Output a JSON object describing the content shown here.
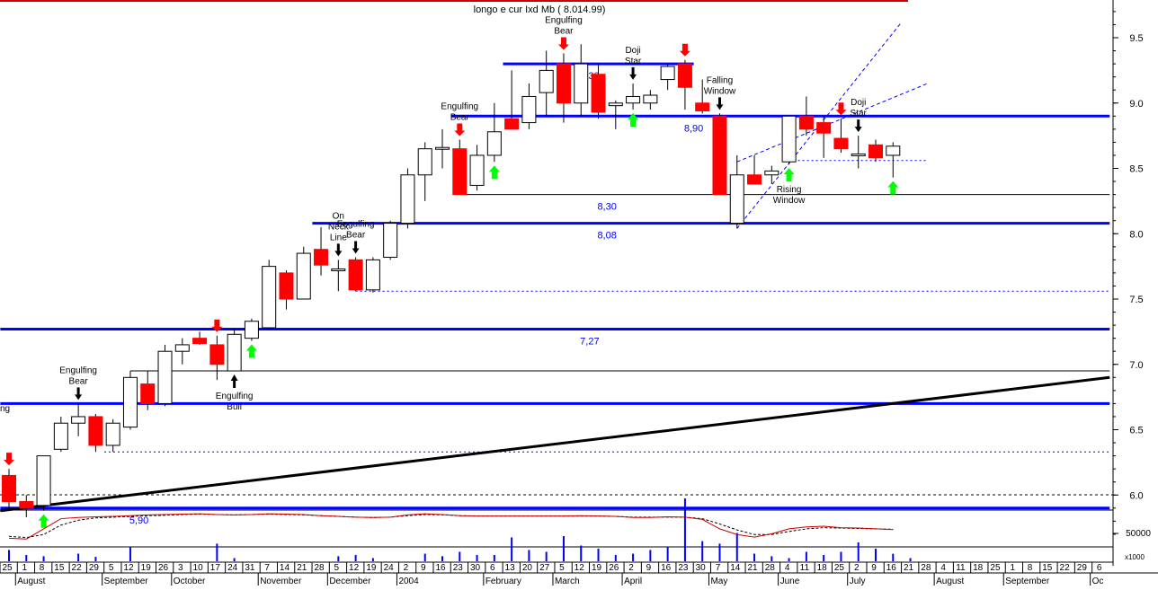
{
  "title": "longo e cur Ixd Mb ( 8.014.99)",
  "colors": {
    "bear": "#ff0000",
    "bull": "#ffffff",
    "outline": "#000000",
    "level": "#0000ff",
    "trend": "#000000",
    "stoch_k": "#cc0000",
    "stoch_d": "#000000",
    "volume": "#0000ff",
    "up_arrow": "#00ff00",
    "down_arrow_red": "#ff0000",
    "down_arrow_black": "#000000"
  },
  "chart_data": {
    "type": "candlestick",
    "y_axis": {
      "ticks": [
        9.5,
        9.0,
        8.5,
        8.0,
        7.5,
        7.0,
        6.5,
        6.0
      ],
      "range": [
        5.66,
        9.84
      ]
    },
    "volume_axis": {
      "tick_label": "50000",
      "unit_label": "x1000"
    },
    "x_axis": {
      "day_labels": [
        "25",
        "1",
        "8",
        "15",
        "22",
        "29",
        "5",
        "12",
        "19",
        "26",
        "3",
        "10",
        "17",
        "24",
        "31",
        "7",
        "14",
        "21",
        "28",
        "5",
        "12",
        "19",
        "24",
        "2",
        "9",
        "16",
        "23",
        "30",
        "6",
        "13",
        "20",
        "27",
        "5",
        "12",
        "19",
        "26",
        "2",
        "9",
        "16",
        "23",
        "30",
        "7",
        "14",
        "21",
        "28",
        "4",
        "11",
        "18",
        "25",
        "2",
        "9",
        "16",
        "21",
        "28",
        "4",
        "11",
        "18",
        "25",
        "1",
        "8",
        "15",
        "22",
        "29",
        "6"
      ],
      "months": [
        {
          "label": "August",
          "pos": 1
        },
        {
          "label": "September",
          "pos": 6
        },
        {
          "label": "October",
          "pos": 10
        },
        {
          "label": "November",
          "pos": 15
        },
        {
          "label": "December",
          "pos": 19
        },
        {
          "label": "2004",
          "pos": 23
        },
        {
          "label": "February",
          "pos": 28
        },
        {
          "label": "March",
          "pos": 32
        },
        {
          "label": "April",
          "pos": 36
        },
        {
          "label": "May",
          "pos": 41
        },
        {
          "label": "June",
          "pos": 45
        },
        {
          "label": "July",
          "pos": 49
        },
        {
          "label": "August",
          "pos": 54
        },
        {
          "label": "September",
          "pos": 58
        },
        {
          "label": "Oc",
          "pos": 63
        }
      ]
    },
    "candles": [
      {
        "s": 0,
        "o": 6.15,
        "h": 6.2,
        "l": 5.9,
        "c": 5.95
      },
      {
        "s": 1,
        "o": 5.95,
        "h": 6.0,
        "l": 5.83,
        "c": 5.9
      },
      {
        "s": 2,
        "o": 5.92,
        "h": 6.3,
        "l": 5.88,
        "c": 6.3
      },
      {
        "s": 3,
        "o": 6.35,
        "h": 6.6,
        "l": 6.33,
        "c": 6.55
      },
      {
        "s": 4,
        "o": 6.55,
        "h": 6.7,
        "l": 6.45,
        "c": 6.6
      },
      {
        "s": 5,
        "o": 6.6,
        "h": 6.62,
        "l": 6.33,
        "c": 6.38
      },
      {
        "s": 6,
        "o": 6.38,
        "h": 6.58,
        "l": 6.33,
        "c": 6.55
      },
      {
        "s": 7,
        "o": 6.52,
        "h": 6.95,
        "l": 6.5,
        "c": 6.9
      },
      {
        "s": 8,
        "o": 6.85,
        "h": 6.95,
        "l": 6.65,
        "c": 6.7
      },
      {
        "s": 9,
        "o": 6.7,
        "h": 7.15,
        "l": 6.68,
        "c": 7.1
      },
      {
        "s": 10,
        "o": 7.1,
        "h": 7.2,
        "l": 7.0,
        "c": 7.15
      },
      {
        "s": 11,
        "o": 7.2,
        "h": 7.25,
        "l": 7.15,
        "c": 7.16
      },
      {
        "s": 12,
        "o": 7.15,
        "h": 7.22,
        "l": 6.88,
        "c": 7.0
      },
      {
        "s": 13,
        "o": 6.95,
        "h": 7.27,
        "l": 6.95,
        "c": 7.23
      },
      {
        "s": 14,
        "o": 7.2,
        "h": 7.35,
        "l": 7.18,
        "c": 7.33
      },
      {
        "s": 15,
        "o": 7.28,
        "h": 7.8,
        "l": 7.27,
        "c": 7.75
      },
      {
        "s": 16,
        "o": 7.7,
        "h": 7.72,
        "l": 7.42,
        "c": 7.5
      },
      {
        "s": 17,
        "o": 7.5,
        "h": 7.9,
        "l": 7.5,
        "c": 7.85
      },
      {
        "s": 18,
        "o": 7.88,
        "h": 8.05,
        "l": 7.68,
        "c": 7.76
      },
      {
        "s": 19,
        "o": 7.72,
        "h": 7.8,
        "l": 7.56,
        "c": 7.73
      },
      {
        "s": 20,
        "o": 7.8,
        "h": 7.82,
        "l": 7.56,
        "c": 7.57
      },
      {
        "s": 21,
        "o": 7.57,
        "h": 7.82,
        "l": 7.55,
        "c": 7.8
      },
      {
        "s": 22,
        "o": 7.82,
        "h": 8.1,
        "l": 7.8,
        "c": 8.08
      },
      {
        "s": 23,
        "o": 8.08,
        "h": 8.5,
        "l": 8.04,
        "c": 8.45
      },
      {
        "s": 24,
        "o": 8.45,
        "h": 8.7,
        "l": 8.25,
        "c": 8.65
      },
      {
        "s": 25,
        "o": 8.65,
        "h": 8.8,
        "l": 8.5,
        "c": 8.66
      },
      {
        "s": 26,
        "o": 8.65,
        "h": 8.72,
        "l": 8.3,
        "c": 8.3
      },
      {
        "s": 27,
        "o": 8.37,
        "h": 8.68,
        "l": 8.33,
        "c": 8.6
      },
      {
        "s": 28,
        "o": 8.6,
        "h": 9.0,
        "l": 8.55,
        "c": 8.78
      },
      {
        "s": 29,
        "o": 8.88,
        "h": 9.25,
        "l": 8.8,
        "c": 8.8
      },
      {
        "s": 30,
        "o": 8.85,
        "h": 9.15,
        "l": 8.8,
        "c": 9.05
      },
      {
        "s": 31,
        "o": 9.08,
        "h": 9.4,
        "l": 8.9,
        "c": 9.25
      },
      {
        "s": 32,
        "o": 9.3,
        "h": 9.38,
        "l": 8.85,
        "c": 9.0
      },
      {
        "s": 33,
        "o": 9.0,
        "h": 9.45,
        "l": 8.9,
        "c": 9.3
      },
      {
        "s": 34,
        "o": 9.22,
        "h": 9.3,
        "l": 8.88,
        "c": 8.93
      },
      {
        "s": 35,
        "o": 8.98,
        "h": 9.02,
        "l": 8.8,
        "c": 9.0
      },
      {
        "s": 36,
        "o": 9.0,
        "h": 9.15,
        "l": 8.95,
        "c": 9.05
      },
      {
        "s": 37,
        "o": 9.0,
        "h": 9.1,
        "l": 8.95,
        "c": 9.06
      },
      {
        "s": 38,
        "o": 9.18,
        "h": 9.3,
        "l": 9.1,
        "c": 9.28
      },
      {
        "s": 39,
        "o": 9.3,
        "h": 9.33,
        "l": 8.95,
        "c": 9.12
      },
      {
        "s": 40,
        "o": 9.0,
        "h": 9.18,
        "l": 8.92,
        "c": 8.94
      },
      {
        "s": 41,
        "o": 8.9,
        "h": 8.92,
        "l": 8.3,
        "c": 8.3
      },
      {
        "s": 42,
        "o": 8.08,
        "h": 8.6,
        "l": 8.04,
        "c": 8.45
      },
      {
        "s": 43,
        "o": 8.45,
        "h": 8.6,
        "l": 8.38,
        "c": 8.38
      },
      {
        "s": 44,
        "o": 8.45,
        "h": 8.52,
        "l": 8.38,
        "c": 8.48
      },
      {
        "s": 45,
        "o": 8.55,
        "h": 8.9,
        "l": 8.53,
        "c": 8.9
      },
      {
        "s": 46,
        "o": 8.9,
        "h": 9.05,
        "l": 8.75,
        "c": 8.8
      },
      {
        "s": 47,
        "o": 8.85,
        "h": 8.9,
        "l": 8.58,
        "c": 8.77
      },
      {
        "s": 48,
        "o": 8.73,
        "h": 8.88,
        "l": 8.62,
        "c": 8.65
      },
      {
        "s": 49,
        "o": 8.6,
        "h": 8.75,
        "l": 8.5,
        "c": 8.61
      },
      {
        "s": 50,
        "o": 8.68,
        "h": 8.72,
        "l": 8.55,
        "c": 8.58
      },
      {
        "s": 51,
        "o": 8.6,
        "h": 8.7,
        "l": 8.43,
        "c": 8.67
      }
    ],
    "levels": [
      {
        "y": 9.3,
        "label": "9,30",
        "from": 28.5,
        "to": 39.5,
        "label_pos": 33.5
      },
      {
        "y": 8.9,
        "label": "8,90",
        "from": 25.5,
        "to": 63.5,
        "label_pos": 39.5
      },
      {
        "y": 8.3,
        "label": "8,30",
        "from": 26,
        "to": 63.5,
        "label_pos": 34.5,
        "thin": true
      },
      {
        "y": 8.08,
        "label": "8,08",
        "from": 17.5,
        "to": 63.5,
        "label_pos": 34.5
      },
      {
        "y": 7.27,
        "label": "7,27",
        "from": -0.5,
        "to": 63.5,
        "label_pos": 33.5
      },
      {
        "y": 6.95,
        "label": "",
        "from": 7,
        "to": 63.5,
        "thin": true
      },
      {
        "y": 6.7,
        "label": "",
        "from": -0.5,
        "to": 63.5
      },
      {
        "y": 5.9,
        "label": "5,90",
        "from": -0.5,
        "to": 63.5,
        "label_pos": 7.5
      }
    ],
    "dashed_lines": [
      {
        "y": 7.56,
        "from": 20,
        "to": 63.5
      },
      {
        "y": 6.33,
        "from": 5.5,
        "to": 63.5
      },
      {
        "y": 8.56,
        "from": 45,
        "to": 53
      }
    ],
    "trend_line": {
      "x1": -0.5,
      "y1": 5.88,
      "x2": 63.5,
      "y2": 6.9
    },
    "channel_lines": [
      {
        "x1": 42,
        "y1": 8.04,
        "x2": 51.5,
        "y2": 9.62
      },
      {
        "x1": 42,
        "y1": 8.55,
        "x2": 53,
        "y2": 9.15
      }
    ],
    "signals": [
      {
        "s": 0,
        "dir": "down",
        "color": "red",
        "lines": []
      },
      {
        "s": 2,
        "dir": "up",
        "color": "green",
        "lines": []
      },
      {
        "s": 4,
        "dir": "down",
        "color": "black",
        "lines": [
          "Engulfing",
          "Bear"
        ]
      },
      {
        "s": 12,
        "dir": "down",
        "color": "red",
        "lines": []
      },
      {
        "s": 13,
        "dir": "up",
        "color": "black",
        "lines": [
          "Engulfing",
          "Bull"
        ]
      },
      {
        "s": 14,
        "dir": "up",
        "color": "green",
        "lines": []
      },
      {
        "s": 19,
        "dir": "down",
        "color": "black",
        "lines": [
          "On",
          "Neck",
          "Line"
        ]
      },
      {
        "s": 20,
        "dir": "down",
        "color": "black",
        "lines": [
          "Engulfing",
          "Bear"
        ]
      },
      {
        "s": 26,
        "dir": "down",
        "color": "red",
        "lines": [
          "Engulfing",
          "Bear"
        ]
      },
      {
        "s": 28,
        "dir": "up",
        "color": "green",
        "lines": []
      },
      {
        "s": 32,
        "dir": "down",
        "color": "red",
        "lines": [
          "Engulfing",
          "Bear"
        ]
      },
      {
        "s": 36,
        "dir": "down",
        "color": "black",
        "lines": [
          "Doji",
          "Star"
        ]
      },
      {
        "s": 36,
        "dir": "up",
        "color": "green",
        "lines": []
      },
      {
        "s": 39,
        "dir": "down",
        "color": "red",
        "lines": []
      },
      {
        "s": 41,
        "dir": "down",
        "color": "black",
        "lines": [
          "Falling",
          "Window"
        ]
      },
      {
        "s": 45,
        "dir": "up",
        "color": "green",
        "lines": [
          "Rising",
          "Window"
        ]
      },
      {
        "s": 48,
        "dir": "down",
        "color": "red",
        "lines": []
      },
      {
        "s": 49,
        "dir": "down",
        "color": "black",
        "lines": [
          "Doji",
          "Star"
        ]
      },
      {
        "s": 51,
        "dir": "up",
        "color": "green",
        "lines": []
      }
    ],
    "left_edge_label": "ng",
    "volume": [
      {
        "s": 0,
        "v": 0.18
      },
      {
        "s": 1,
        "v": 0.1
      },
      {
        "s": 2,
        "v": 0.08
      },
      {
        "s": 4,
        "v": 0.12
      },
      {
        "s": 5,
        "v": 0.07
      },
      {
        "s": 7,
        "v": 0.22
      },
      {
        "s": 12,
        "v": 0.28
      },
      {
        "s": 13,
        "v": 0.05
      },
      {
        "s": 19,
        "v": 0.08
      },
      {
        "s": 20,
        "v": 0.1
      },
      {
        "s": 21,
        "v": 0.05
      },
      {
        "s": 24,
        "v": 0.12
      },
      {
        "s": 25,
        "v": 0.08
      },
      {
        "s": 26,
        "v": 0.15
      },
      {
        "s": 27,
        "v": 0.1
      },
      {
        "s": 28,
        "v": 0.1
      },
      {
        "s": 29,
        "v": 0.38
      },
      {
        "s": 30,
        "v": 0.18
      },
      {
        "s": 31,
        "v": 0.15
      },
      {
        "s": 32,
        "v": 0.4
      },
      {
        "s": 33,
        "v": 0.25
      },
      {
        "s": 34,
        "v": 0.2
      },
      {
        "s": 35,
        "v": 0.1
      },
      {
        "s": 36,
        "v": 0.12
      },
      {
        "s": 37,
        "v": 0.18
      },
      {
        "s": 38,
        "v": 0.22
      },
      {
        "s": 39,
        "v": 1.0
      },
      {
        "s": 40,
        "v": 0.32
      },
      {
        "s": 41,
        "v": 0.28
      },
      {
        "s": 42,
        "v": 0.45
      },
      {
        "s": 43,
        "v": 0.12
      },
      {
        "s": 44,
        "v": 0.08
      },
      {
        "s": 45,
        "v": 0.05
      },
      {
        "s": 46,
        "v": 0.15
      },
      {
        "s": 47,
        "v": 0.1
      },
      {
        "s": 48,
        "v": 0.15
      },
      {
        "s": 49,
        "v": 0.3
      },
      {
        "s": 50,
        "v": 0.2
      },
      {
        "s": 51,
        "v": 0.12
      },
      {
        "s": 52,
        "v": 0.05
      }
    ],
    "stoch_k": [
      0.3,
      0.28,
      0.55,
      0.82,
      0.85,
      0.87,
      0.88,
      0.9,
      0.92,
      0.93,
      0.94,
      0.95,
      0.93,
      0.92,
      0.93,
      0.95,
      0.94,
      0.93,
      0.9,
      0.88,
      0.86,
      0.85,
      0.86,
      0.92,
      0.95,
      0.93,
      0.9,
      0.89,
      0.89,
      0.89,
      0.89,
      0.89,
      0.89,
      0.9,
      0.89,
      0.88,
      0.85,
      0.85,
      0.87,
      0.86,
      0.8,
      0.55,
      0.4,
      0.33,
      0.42,
      0.55,
      0.6,
      0.62,
      0.58,
      0.57,
      0.55,
      0.53
    ],
    "stoch_d": [
      0.35,
      0.32,
      0.4,
      0.65,
      0.78,
      0.84,
      0.86,
      0.88,
      0.9,
      0.91,
      0.93,
      0.94,
      0.93,
      0.92,
      0.93,
      0.94,
      0.93,
      0.92,
      0.9,
      0.88,
      0.86,
      0.85,
      0.86,
      0.9,
      0.93,
      0.92,
      0.9,
      0.89,
      0.89,
      0.89,
      0.89,
      0.89,
      0.89,
      0.89,
      0.89,
      0.88,
      0.86,
      0.86,
      0.86,
      0.86,
      0.82,
      0.68,
      0.52,
      0.4,
      0.4,
      0.48,
      0.55,
      0.58,
      0.57,
      0.56,
      0.55,
      0.54
    ]
  }
}
